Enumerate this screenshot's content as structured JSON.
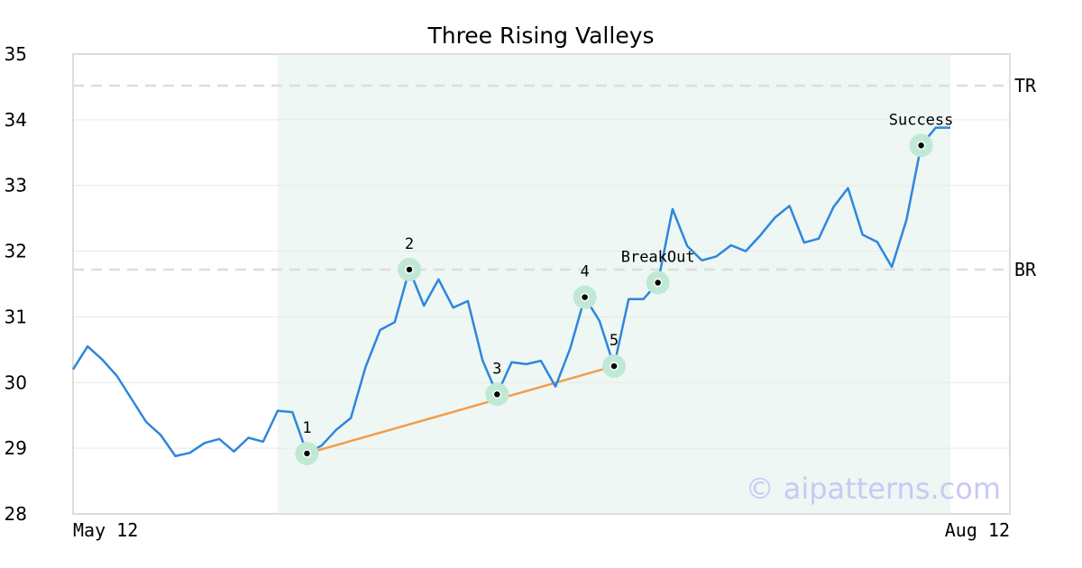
{
  "chart_data": {
    "type": "line",
    "title": "Three Rising Valleys",
    "ylim": [
      28,
      35
    ],
    "yticks": [
      28,
      29,
      30,
      31,
      32,
      33,
      34,
      35
    ],
    "x_tick_labels": [
      {
        "index": 0,
        "label": "May 12"
      },
      {
        "index": 60,
        "label": "Aug 12"
      }
    ],
    "grid": true,
    "pattern_window": {
      "start_index": 14,
      "end_index": 60
    },
    "levels": [
      {
        "name": "TR",
        "value": 34.52
      },
      {
        "name": "BR",
        "value": 31.72
      }
    ],
    "series": [
      {
        "values": [
          30.2,
          30.55,
          30.35,
          30.1,
          29.75,
          29.4,
          29.2,
          28.88,
          28.93,
          29.08,
          29.14,
          28.95,
          29.16,
          29.1,
          29.57,
          29.55,
          28.92,
          29.04,
          29.28,
          29.46,
          30.23,
          30.8,
          30.92,
          31.72,
          31.17,
          31.57,
          31.14,
          31.24,
          30.34,
          29.82,
          30.31,
          30.28,
          30.33,
          29.94,
          30.52,
          31.3,
          30.94,
          30.25,
          31.27,
          31.27,
          31.52,
          32.64,
          32.08,
          31.86,
          31.92,
          32.09,
          32.0,
          32.24,
          32.51,
          32.69,
          32.13,
          32.19,
          32.67,
          32.96,
          32.25,
          32.14,
          31.76,
          32.48,
          33.61,
          33.88,
          33.88
        ]
      }
    ],
    "trendline": {
      "from_index": 16,
      "to_index": 37
    },
    "points": [
      {
        "index": 16,
        "value": 28.92,
        "label": "1"
      },
      {
        "index": 23,
        "value": 31.72,
        "label": "2"
      },
      {
        "index": 29,
        "value": 29.82,
        "label": "3"
      },
      {
        "index": 35,
        "value": 31.3,
        "label": "4"
      },
      {
        "index": 37,
        "value": 30.25,
        "label": "5"
      },
      {
        "index": 40,
        "value": 31.52,
        "label": "BreakOut"
      },
      {
        "index": 58,
        "value": 33.61,
        "label": "Success"
      }
    ],
    "watermark": "© aipatterns.com",
    "colors": {
      "line": "#2e86de",
      "trendline": "#f39c4a",
      "window_fill": "#eef7f3",
      "marker_halo": "#bfe9d4",
      "marker_dot": "#000000",
      "level_line": "#dddddd",
      "grid": "#e8e8e8",
      "frame": "#dddddd"
    }
  }
}
